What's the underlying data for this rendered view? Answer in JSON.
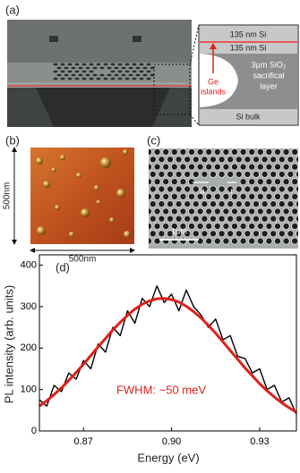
{
  "panels": {
    "a": {
      "label": "(a)",
      "layer_top": "135 nm Si",
      "layer_mid": "135 nm Si",
      "islands": [
        "Ge",
        "islands"
      ],
      "oxide": [
        "3µm SiO₂",
        "sacrifical",
        "layer"
      ],
      "bulk": "Si bulk"
    },
    "b": {
      "label": "(b)",
      "height": "500nm",
      "width": "500nm"
    },
    "c": {
      "label": "(c)",
      "a": "a",
      "r": "r",
      "scale": "1µm"
    }
  },
  "chart_data": {
    "type": "line",
    "panel_label": "(d)",
    "x_label": "Energy (eV)",
    "y_label": "PL intensity (arb. units)",
    "annotation": "FWHM: ~50 meV",
    "xlim": [
      0.855,
      0.9425
    ],
    "ylim": [
      0,
      425
    ],
    "xticks": [
      0.87,
      {
        "value": 0.9,
        "label": "0.90"
      },
      0.93
    ],
    "yticks": [
      0,
      100,
      200,
      300,
      400
    ],
    "x": [
      0.855,
      0.8575,
      0.86,
      0.8625,
      0.865,
      0.8675,
      0.87,
      0.8725,
      0.875,
      0.8775,
      0.88,
      0.8825,
      0.885,
      0.8875,
      0.89,
      0.8925,
      0.895,
      0.8975,
      0.9,
      0.9025,
      0.905,
      0.9075,
      0.91,
      0.9125,
      0.915,
      0.9175,
      0.92,
      0.9225,
      0.925,
      0.9275,
      0.93,
      0.9325,
      0.935,
      0.9375,
      0.94,
      0.9425
    ],
    "series": [
      {
        "color": "#000000",
        "values": [
          75,
          60,
          110,
          95,
          140,
          125,
          170,
          150,
          210,
          190,
          250,
          230,
          290,
          260,
          320,
          300,
          350,
          310,
          330,
          290,
          340,
          300,
          280,
          250,
          270,
          220,
          230,
          180,
          175,
          140,
          150,
          100,
          110,
          70,
          80,
          40
        ]
      },
      {
        "color": "#e0201a",
        "values": [
          60,
          73,
          88,
          104,
          122,
          141,
          161,
          182,
          203,
          223,
          244,
          262,
          279,
          294,
          306,
          314,
          319,
          320,
          317,
          311,
          301,
          288,
          273,
          255,
          236,
          215,
          194,
          173,
          152,
          133,
          114,
          97,
          82,
          68,
          56,
          45
        ]
      }
    ]
  }
}
